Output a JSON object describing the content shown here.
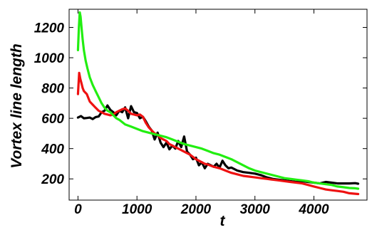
{
  "chart_data": {
    "type": "line",
    "title": "",
    "xlabel": "t",
    "ylabel": "Vortex line length",
    "xlim": [
      -150,
      4900
    ],
    "ylim": [
      60,
      1320
    ],
    "xticks": [
      0,
      1000,
      2000,
      3000,
      4000
    ],
    "yticks": [
      200,
      400,
      600,
      800,
      1000,
      1200
    ],
    "grid": false,
    "legend": "none",
    "series": [
      {
        "color": "#000000",
        "points": [
          [
            0,
            605
          ],
          [
            50,
            615
          ],
          [
            100,
            600
          ],
          [
            150,
            602
          ],
          [
            200,
            605
          ],
          [
            250,
            595
          ],
          [
            300,
            608
          ],
          [
            350,
            612
          ],
          [
            400,
            640
          ],
          [
            450,
            650
          ],
          [
            500,
            685
          ],
          [
            550,
            655
          ],
          [
            600,
            640
          ],
          [
            650,
            620
          ],
          [
            700,
            650
          ],
          [
            750,
            640
          ],
          [
            800,
            672
          ],
          [
            850,
            600
          ],
          [
            900,
            680
          ],
          [
            950,
            640
          ],
          [
            1000,
            635
          ],
          [
            1050,
            600
          ],
          [
            1100,
            610
          ],
          [
            1150,
            580
          ],
          [
            1200,
            545
          ],
          [
            1250,
            520
          ],
          [
            1300,
            460
          ],
          [
            1350,
            505
          ],
          [
            1400,
            440
          ],
          [
            1450,
            410
          ],
          [
            1500,
            440
          ],
          [
            1550,
            395
          ],
          [
            1600,
            420
          ],
          [
            1650,
            400
          ],
          [
            1700,
            450
          ],
          [
            1750,
            410
          ],
          [
            1800,
            480
          ],
          [
            1850,
            380
          ],
          [
            1900,
            360
          ],
          [
            1950,
            330
          ],
          [
            2000,
            340
          ],
          [
            2050,
            290
          ],
          [
            2100,
            310
          ],
          [
            2150,
            270
          ],
          [
            2200,
            300
          ],
          [
            2250,
            290
          ],
          [
            2300,
            280
          ],
          [
            2350,
            300
          ],
          [
            2400,
            275
          ],
          [
            2450,
            320
          ],
          [
            2500,
            290
          ],
          [
            2550,
            270
          ],
          [
            2600,
            275
          ],
          [
            2700,
            255
          ],
          [
            2800,
            245
          ],
          [
            2900,
            240
          ],
          [
            3000,
            235
          ],
          [
            3100,
            225
          ],
          [
            3200,
            210
          ],
          [
            3300,
            200
          ],
          [
            3400,
            195
          ],
          [
            3500,
            190
          ],
          [
            3600,
            185
          ],
          [
            3700,
            180
          ],
          [
            3800,
            185
          ],
          [
            3900,
            180
          ],
          [
            4000,
            175
          ],
          [
            4100,
            170
          ],
          [
            4200,
            180
          ],
          [
            4300,
            175
          ],
          [
            4400,
            170
          ],
          [
            4500,
            170
          ],
          [
            4600,
            170
          ],
          [
            4700,
            172
          ],
          [
            4750,
            168
          ]
        ]
      },
      {
        "color": "#ee1111",
        "points": [
          [
            0,
            760
          ],
          [
            20,
            900
          ],
          [
            40,
            860
          ],
          [
            60,
            830
          ],
          [
            80,
            800
          ],
          [
            100,
            780
          ],
          [
            150,
            760
          ],
          [
            200,
            710
          ],
          [
            250,
            690
          ],
          [
            300,
            670
          ],
          [
            350,
            650
          ],
          [
            400,
            640
          ],
          [
            450,
            630
          ],
          [
            500,
            625
          ],
          [
            550,
            620
          ],
          [
            600,
            625
          ],
          [
            650,
            640
          ],
          [
            700,
            650
          ],
          [
            750,
            660
          ],
          [
            800,
            665
          ],
          [
            850,
            650
          ],
          [
            900,
            630
          ],
          [
            950,
            625
          ],
          [
            1000,
            620
          ],
          [
            1050,
            625
          ],
          [
            1100,
            610
          ],
          [
            1150,
            570
          ],
          [
            1200,
            540
          ],
          [
            1250,
            520
          ],
          [
            1300,
            500
          ],
          [
            1350,
            490
          ],
          [
            1400,
            470
          ],
          [
            1450,
            460
          ],
          [
            1500,
            450
          ],
          [
            1550,
            430
          ],
          [
            1600,
            420
          ],
          [
            1650,
            410
          ],
          [
            1700,
            400
          ],
          [
            1750,
            390
          ],
          [
            1800,
            380
          ],
          [
            1850,
            370
          ],
          [
            1900,
            360
          ],
          [
            1950,
            345
          ],
          [
            2000,
            330
          ],
          [
            2050,
            320
          ],
          [
            2100,
            310
          ],
          [
            2150,
            300
          ],
          [
            2200,
            295
          ],
          [
            2300,
            280
          ],
          [
            2400,
            270
          ],
          [
            2500,
            255
          ],
          [
            2600,
            240
          ],
          [
            2700,
            230
          ],
          [
            2800,
            220
          ],
          [
            2900,
            215
          ],
          [
            3000,
            210
          ],
          [
            3100,
            205
          ],
          [
            3200,
            200
          ],
          [
            3300,
            195
          ],
          [
            3400,
            190
          ],
          [
            3500,
            185
          ],
          [
            3600,
            180
          ],
          [
            3700,
            175
          ],
          [
            3800,
            170
          ],
          [
            3900,
            160
          ],
          [
            4000,
            150
          ],
          [
            4100,
            140
          ],
          [
            4200,
            130
          ],
          [
            4300,
            125
          ],
          [
            4400,
            120
          ],
          [
            4500,
            115
          ],
          [
            4600,
            105
          ],
          [
            4700,
            102
          ],
          [
            4750,
            100
          ]
        ]
      },
      {
        "color": "#22ee11",
        "points": [
          [
            0,
            1050
          ],
          [
            15,
            1200
          ],
          [
            30,
            1300
          ],
          [
            45,
            1270
          ],
          [
            60,
            1200
          ],
          [
            80,
            1120
          ],
          [
            100,
            1050
          ],
          [
            130,
            980
          ],
          [
            160,
            930
          ],
          [
            200,
            870
          ],
          [
            250,
            820
          ],
          [
            300,
            780
          ],
          [
            350,
            740
          ],
          [
            400,
            700
          ],
          [
            450,
            670
          ],
          [
            500,
            650
          ],
          [
            550,
            640
          ],
          [
            600,
            620
          ],
          [
            650,
            600
          ],
          [
            700,
            590
          ],
          [
            750,
            575
          ],
          [
            800,
            560
          ],
          [
            900,
            545
          ],
          [
            1000,
            530
          ],
          [
            1100,
            515
          ],
          [
            1200,
            505
          ],
          [
            1300,
            495
          ],
          [
            1400,
            485
          ],
          [
            1500,
            475
          ],
          [
            1600,
            460
          ],
          [
            1700,
            445
          ],
          [
            1800,
            430
          ],
          [
            1900,
            420
          ],
          [
            2000,
            410
          ],
          [
            2100,
            400
          ],
          [
            2200,
            385
          ],
          [
            2300,
            370
          ],
          [
            2400,
            360
          ],
          [
            2500,
            345
          ],
          [
            2600,
            330
          ],
          [
            2700,
            310
          ],
          [
            2800,
            290
          ],
          [
            2900,
            270
          ],
          [
            3000,
            255
          ],
          [
            3100,
            245
          ],
          [
            3200,
            235
          ],
          [
            3300,
            225
          ],
          [
            3400,
            215
          ],
          [
            3500,
            205
          ],
          [
            3600,
            200
          ],
          [
            3700,
            195
          ],
          [
            3800,
            190
          ],
          [
            3900,
            185
          ],
          [
            4000,
            175
          ],
          [
            4100,
            170
          ],
          [
            4200,
            165
          ],
          [
            4300,
            160
          ],
          [
            4400,
            150
          ],
          [
            4500,
            145
          ],
          [
            4600,
            140
          ],
          [
            4700,
            138
          ],
          [
            4750,
            135
          ]
        ]
      }
    ]
  }
}
